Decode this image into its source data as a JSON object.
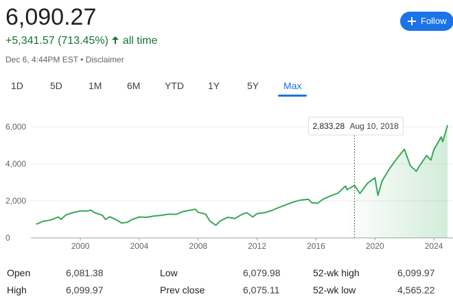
{
  "header": {
    "price": "6,090.27",
    "change": "+5,341.57 (713.45%)",
    "period": "all time",
    "timestamp": "Dec 6, 4:44PM EST",
    "separator": "•",
    "disclaimer": "Disclaimer",
    "follow": "Follow"
  },
  "tabs": [
    "1D",
    "5D",
    "1M",
    "6M",
    "YTD",
    "1Y",
    "5Y",
    "Max"
  ],
  "active_tab": 7,
  "chart_data": {
    "type": "line",
    "color": "#34a853",
    "grid": true,
    "x": [
      1997.0,
      1997.5,
      1998.0,
      1998.5,
      1998.7,
      1999.0,
      1999.5,
      2000.0,
      2000.5,
      2000.7,
      2001.0,
      2001.5,
      2001.7,
      2002.0,
      2002.5,
      2002.8,
      2003.2,
      2003.5,
      2004.0,
      2004.5,
      2005.0,
      2005.5,
      2006.0,
      2006.5,
      2007.0,
      2007.5,
      2007.8,
      2008.0,
      2008.5,
      2008.8,
      2009.2,
      2009.5,
      2010.0,
      2010.5,
      2011.0,
      2011.3,
      2011.7,
      2012.0,
      2012.5,
      2013.0,
      2013.5,
      2014.0,
      2014.5,
      2015.0,
      2015.5,
      2015.7,
      2016.1,
      2016.5,
      2017.0,
      2017.5,
      2018.0,
      2018.1,
      2018.61,
      2018.98,
      2019.5,
      2020.0,
      2020.2,
      2020.5,
      2021.0,
      2021.5,
      2022.0,
      2022.4,
      2022.8,
      2023.0,
      2023.5,
      2023.8,
      2024.0,
      2024.5,
      2024.6,
      2024.93
    ],
    "values": [
      740,
      900,
      970,
      1130,
      1000,
      1230,
      1370,
      1450,
      1450,
      1500,
      1350,
      1220,
      1000,
      1140,
      950,
      800,
      850,
      990,
      1130,
      1110,
      1180,
      1220,
      1280,
      1270,
      1430,
      1500,
      1550,
      1380,
      1280,
      900,
      680,
      920,
      1110,
      1050,
      1280,
      1360,
      1130,
      1310,
      1360,
      1480,
      1650,
      1800,
      1950,
      2050,
      2080,
      1900,
      1870,
      2100,
      2270,
      2420,
      2800,
      2600,
      2833.28,
      2400,
      2950,
      3250,
      2300,
      3100,
      3750,
      4300,
      4790,
      3900,
      3600,
      3850,
      4450,
      4200,
      4770,
      5450,
      5200,
      6090.27
    ],
    "xlim": [
      1996.64,
      2025.3
    ],
    "ylim": [
      0,
      6500
    ],
    "xticks": [
      2000,
      2004,
      2008,
      2012,
      2016,
      2020,
      2024
    ],
    "yticks": [
      0,
      {
        "value": 2000,
        "label": "2,000"
      },
      {
        "value": 4000,
        "label": "4,000"
      },
      {
        "value": 6000,
        "label": "6,000"
      }
    ],
    "tooltip": {
      "x": 2018.61,
      "value": 2833.28,
      "value_label": "2,833.28",
      "date": "Aug 10, 2018"
    }
  },
  "stats": {
    "rows": [
      [
        {
          "label": "Open",
          "value": "6,081.38"
        },
        {
          "label": "Low",
          "value": "6,079.98"
        },
        {
          "label": "52-wk high",
          "value": "6,099.97"
        }
      ],
      [
        {
          "label": "High",
          "value": "6,099.97"
        },
        {
          "label": "Prev close",
          "value": "6,075.11"
        },
        {
          "label": "52-wk low",
          "value": "4,565.22"
        }
      ]
    ]
  }
}
